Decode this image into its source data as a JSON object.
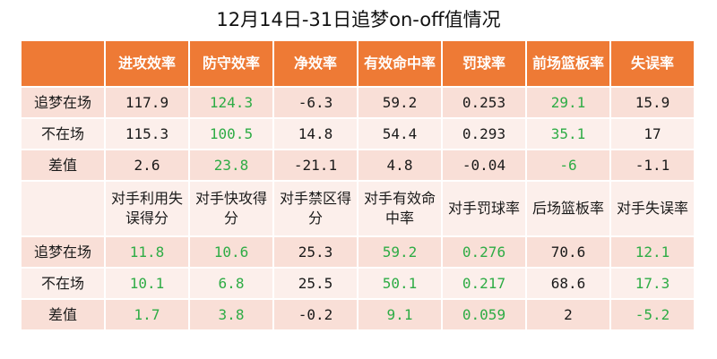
{
  "title": "12月14日-31日追梦on-off值情况",
  "header1": [
    "",
    "进攻效率",
    "防守效率",
    "净效率",
    "有效命中率",
    "罚球率",
    "前场篮板率",
    "失误率"
  ],
  "rows1": [
    {
      "label": "追梦在场",
      "values": [
        "117.9",
        "124.3",
        "-6.3",
        "59.2",
        "0.253",
        "29.1",
        "15.9"
      ],
      "green": [
        false,
        true,
        false,
        false,
        false,
        true,
        false
      ]
    },
    {
      "label": "不在场",
      "values": [
        "115.3",
        "100.5",
        "14.8",
        "54.4",
        "0.293",
        "35.1",
        "17"
      ],
      "green": [
        false,
        true,
        false,
        false,
        false,
        true,
        false
      ]
    },
    {
      "label": "差值",
      "values": [
        "2.6",
        "23.8",
        "-21.1",
        "4.8",
        "-0.04",
        "-6",
        "-1.1"
      ],
      "green": [
        false,
        true,
        false,
        false,
        false,
        true,
        false
      ]
    }
  ],
  "header2": [
    "",
    "对手利用失误得分",
    "对手快攻得分",
    "对手禁区得分",
    "对手有效命中率",
    "对手罚球率",
    "后场篮板率",
    "对手失误率"
  ],
  "rows2": [
    {
      "label": "追梦在场",
      "values": [
        "11.8",
        "10.6",
        "25.3",
        "59.2",
        "0.276",
        "70.6",
        "12.1"
      ],
      "green": [
        true,
        true,
        false,
        true,
        true,
        false,
        true
      ]
    },
    {
      "label": "不在场",
      "values": [
        "10.1",
        "6.8",
        "25.5",
        "50.1",
        "0.217",
        "68.6",
        "17.3"
      ],
      "green": [
        true,
        true,
        false,
        true,
        true,
        false,
        true
      ]
    },
    {
      "label": "差值",
      "values": [
        "1.7",
        "3.8",
        "-0.2",
        "9.1",
        "0.059",
        "2",
        "-5.2"
      ],
      "green": [
        true,
        true,
        false,
        true,
        true,
        false,
        true
      ]
    }
  ],
  "colors": {
    "header_bg": "#ee7a35",
    "row_pink": "#f9dfd7",
    "row_pale": "#fcefeb",
    "highlight_green": "#2eac45"
  }
}
